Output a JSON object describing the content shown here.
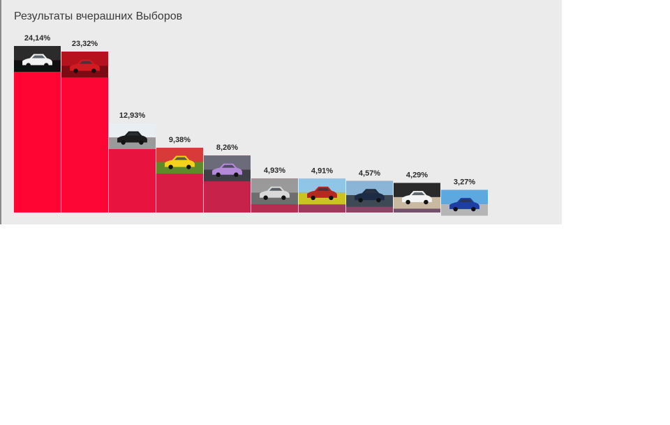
{
  "chart_data": {
    "type": "bar",
    "title": "Результаты вчерашних Выборов",
    "categories": [
      "",
      "",
      "",
      "",
      "",
      "",
      "",
      "",
      "",
      ""
    ],
    "values": [
      24.14,
      23.32,
      12.93,
      9.38,
      8.26,
      4.93,
      4.91,
      4.57,
      4.29,
      3.27
    ],
    "value_labels": [
      "24,14%",
      "23,32%",
      "12,93%",
      "9,38%",
      "8,26%",
      "4,93%",
      "4,91%",
      "4,57%",
      "4,29%",
      "3,27%"
    ],
    "bar_colors": [
      "#fe0534",
      "#fd0635",
      "#e8133e",
      "#d81d44",
      "#c7234a",
      "#b42e52",
      "#9e3b5c",
      "#8a4565",
      "#73506c",
      "#5e5d78"
    ],
    "thumbnails": [
      {
        "icon": "white-sports-car-photo",
        "sky": "#2b2b2b",
        "ground": "#101010",
        "car": "#f2f2f2"
      },
      {
        "icon": "red-car-rear-photo",
        "sky": "#b5121d",
        "ground": "#7a0c13",
        "car": "#d11a22"
      },
      {
        "icon": "black-suv-photo",
        "sky": "#e8eef2",
        "ground": "#9a9a9a",
        "car": "#1b1b1b"
      },
      {
        "icon": "yellow-race-car-photo",
        "sky": "#d83a3a",
        "ground": "#5f8a2a",
        "car": "#f4d21c"
      },
      {
        "icon": "purple-sedan-photo",
        "sky": "#6b6b7a",
        "ground": "#3f3f48",
        "car": "#b48ad8"
      },
      {
        "icon": "silver-suv-photo",
        "sky": "#9a9a9a",
        "ground": "#6e6e6e",
        "car": "#d9d9d9"
      },
      {
        "icon": "red-car-field-photo",
        "sky": "#8fc6e8",
        "ground": "#c9c41f",
        "car": "#b7281f"
      },
      {
        "icon": "dark-blue-sedan-photo",
        "sky": "#8ab5d6",
        "ground": "#3d4a56",
        "car": "#1d2b44"
      },
      {
        "icon": "white-car-rocks-photo",
        "sky": "#2a2a2a",
        "ground": "#c9b9a0",
        "car": "#f4f4f4"
      },
      {
        "icon": "blue-hatchback-cartoon-photo",
        "sky": "#5ea8e0",
        "ground": "#b5b5b5",
        "car": "#1d3ea3"
      }
    ],
    "ylim": [
      0,
      24.14
    ],
    "grid": false,
    "legend": "none"
  }
}
